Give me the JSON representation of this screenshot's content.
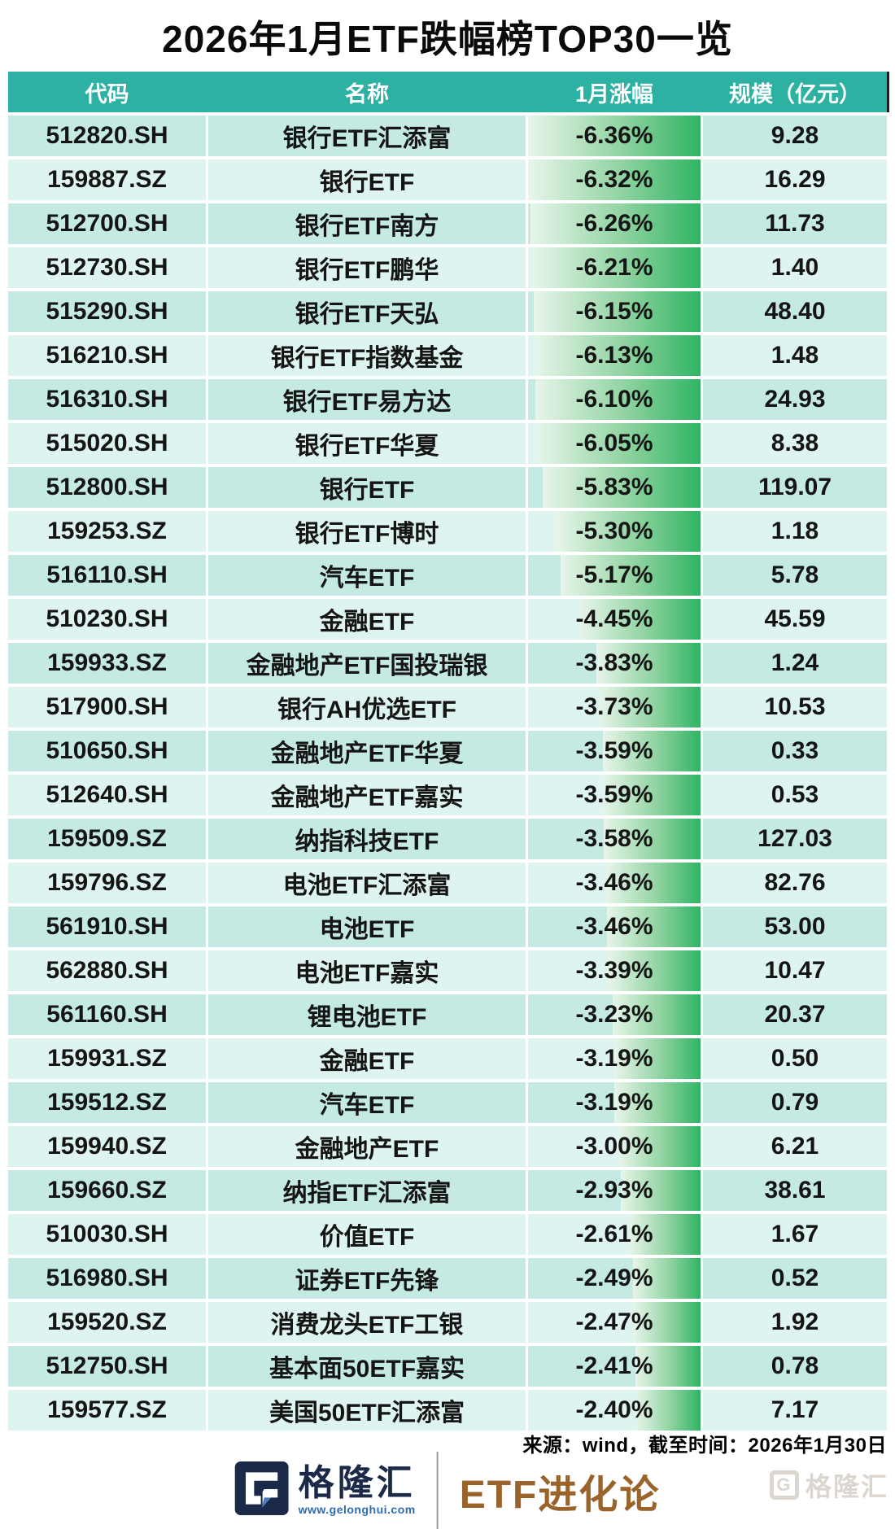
{
  "title": "2026年1月ETF跌幅榜TOP30一览",
  "chart_data": {
    "type": "table",
    "title": "2026年1月ETF跌幅榜TOP30一览",
    "columns": [
      "代码",
      "名称",
      "1月涨幅",
      "规模（亿元）"
    ],
    "bar_column": "1月涨幅",
    "bar_style": "right-anchored green gradient, width proportional to |change| / 6.36",
    "rows": [
      {
        "code": "512820.SH",
        "name": "银行ETF汇添富",
        "change_pct": -6.36,
        "change_label": "-6.36%",
        "scale": 9.28,
        "scale_label": "9.28"
      },
      {
        "code": "159887.SZ",
        "name": "银行ETF",
        "change_pct": -6.32,
        "change_label": "-6.32%",
        "scale": 16.29,
        "scale_label": "16.29"
      },
      {
        "code": "512700.SH",
        "name": "银行ETF南方",
        "change_pct": -6.26,
        "change_label": "-6.26%",
        "scale": 11.73,
        "scale_label": "11.73"
      },
      {
        "code": "512730.SH",
        "name": "银行ETF鹏华",
        "change_pct": -6.21,
        "change_label": "-6.21%",
        "scale": 1.4,
        "scale_label": "1.40"
      },
      {
        "code": "515290.SH",
        "name": "银行ETF天弘",
        "change_pct": -6.15,
        "change_label": "-6.15%",
        "scale": 48.4,
        "scale_label": "48.40"
      },
      {
        "code": "516210.SH",
        "name": "银行ETF指数基金",
        "change_pct": -6.13,
        "change_label": "-6.13%",
        "scale": 1.48,
        "scale_label": "1.48"
      },
      {
        "code": "516310.SH",
        "name": "银行ETF易方达",
        "change_pct": -6.1,
        "change_label": "-6.10%",
        "scale": 24.93,
        "scale_label": "24.93"
      },
      {
        "code": "515020.SH",
        "name": "银行ETF华夏",
        "change_pct": -6.05,
        "change_label": "-6.05%",
        "scale": 8.38,
        "scale_label": "8.38"
      },
      {
        "code": "512800.SH",
        "name": "银行ETF",
        "change_pct": -5.83,
        "change_label": "-5.83%",
        "scale": 119.07,
        "scale_label": "119.07"
      },
      {
        "code": "159253.SZ",
        "name": "银行ETF博时",
        "change_pct": -5.3,
        "change_label": "-5.30%",
        "scale": 1.18,
        "scale_label": "1.18"
      },
      {
        "code": "516110.SH",
        "name": "汽车ETF",
        "change_pct": -5.17,
        "change_label": "-5.17%",
        "scale": 5.78,
        "scale_label": "5.78"
      },
      {
        "code": "510230.SH",
        "name": "金融ETF",
        "change_pct": -4.45,
        "change_label": "-4.45%",
        "scale": 45.59,
        "scale_label": "45.59"
      },
      {
        "code": "159933.SZ",
        "name": "金融地产ETF国投瑞银",
        "change_pct": -3.83,
        "change_label": "-3.83%",
        "scale": 1.24,
        "scale_label": "1.24"
      },
      {
        "code": "517900.SH",
        "name": "银行AH优选ETF",
        "change_pct": -3.73,
        "change_label": "-3.73%",
        "scale": 10.53,
        "scale_label": "10.53"
      },
      {
        "code": "510650.SH",
        "name": "金融地产ETF华夏",
        "change_pct": -3.59,
        "change_label": "-3.59%",
        "scale": 0.33,
        "scale_label": "0.33"
      },
      {
        "code": "512640.SH",
        "name": "金融地产ETF嘉实",
        "change_pct": -3.59,
        "change_label": "-3.59%",
        "scale": 0.53,
        "scale_label": "0.53"
      },
      {
        "code": "159509.SZ",
        "name": "纳指科技ETF",
        "change_pct": -3.58,
        "change_label": "-3.58%",
        "scale": 127.03,
        "scale_label": "127.03"
      },
      {
        "code": "159796.SZ",
        "name": "电池ETF汇添富",
        "change_pct": -3.46,
        "change_label": "-3.46%",
        "scale": 82.76,
        "scale_label": "82.76"
      },
      {
        "code": "561910.SH",
        "name": "电池ETF",
        "change_pct": -3.46,
        "change_label": "-3.46%",
        "scale": 53.0,
        "scale_label": "53.00"
      },
      {
        "code": "562880.SH",
        "name": "电池ETF嘉实",
        "change_pct": -3.39,
        "change_label": "-3.39%",
        "scale": 10.47,
        "scale_label": "10.47"
      },
      {
        "code": "561160.SH",
        "name": "锂电池ETF",
        "change_pct": -3.23,
        "change_label": "-3.23%",
        "scale": 20.37,
        "scale_label": "20.37"
      },
      {
        "code": "159931.SZ",
        "name": "金融ETF",
        "change_pct": -3.19,
        "change_label": "-3.19%",
        "scale": 0.5,
        "scale_label": "0.50"
      },
      {
        "code": "159512.SZ",
        "name": "汽车ETF",
        "change_pct": -3.19,
        "change_label": "-3.19%",
        "scale": 0.79,
        "scale_label": "0.79"
      },
      {
        "code": "159940.SZ",
        "name": "金融地产ETF",
        "change_pct": -3.0,
        "change_label": "-3.00%",
        "scale": 6.21,
        "scale_label": "6.21"
      },
      {
        "code": "159660.SZ",
        "name": "纳指ETF汇添富",
        "change_pct": -2.93,
        "change_label": "-2.93%",
        "scale": 38.61,
        "scale_label": "38.61"
      },
      {
        "code": "510030.SH",
        "name": "价值ETF",
        "change_pct": -2.61,
        "change_label": "-2.61%",
        "scale": 1.67,
        "scale_label": "1.67"
      },
      {
        "code": "516980.SH",
        "name": "证券ETF先锋",
        "change_pct": -2.49,
        "change_label": "-2.49%",
        "scale": 0.52,
        "scale_label": "0.52"
      },
      {
        "code": "159520.SZ",
        "name": "消费龙头ETF工银",
        "change_pct": -2.47,
        "change_label": "-2.47%",
        "scale": 1.92,
        "scale_label": "1.92"
      },
      {
        "code": "512750.SH",
        "name": "基本面50ETF嘉实",
        "change_pct": -2.41,
        "change_label": "-2.41%",
        "scale": 0.78,
        "scale_label": "0.78"
      },
      {
        "code": "159577.SZ",
        "name": "美国50ETF汇添富",
        "change_pct": -2.4,
        "change_label": "-2.40%",
        "scale": 7.17,
        "scale_label": "7.17"
      }
    ]
  },
  "footer": {
    "source": "来源：wind，截至时间：2026年1月30日",
    "brand_name": "格隆汇",
    "brand_url": "www.gelonghui.com",
    "brand_column": "ETF进化论",
    "watermark_g": "G",
    "watermark_text": "格隆汇"
  },
  "colors": {
    "header_bg": "#2cb1a3",
    "row_dark": "#c4eae3",
    "row_light": "#def4f0",
    "bar_green_end": "#2fb463",
    "bar_green_start": "#e7f5ea",
    "title_color": "#0a0a0a",
    "brand_navy": "#1c2a4a",
    "brand_blue": "#2e6db4",
    "brand_brown": "#99632a",
    "watermark_gray": "#dbd6cf"
  }
}
